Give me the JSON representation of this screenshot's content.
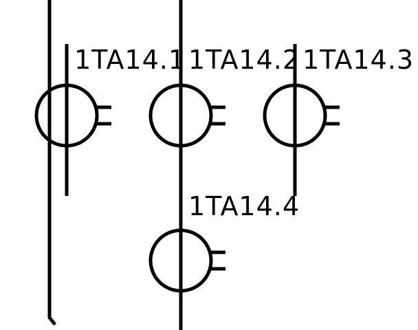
{
  "diagram": {
    "colors": {
      "stroke": "#000000",
      "background": "#ffffff"
    },
    "transformers": [
      {
        "id": "ct1",
        "label": "1TA14.1"
      },
      {
        "id": "ct2",
        "label": "1TA14.2"
      },
      {
        "id": "ct3",
        "label": "1TA14.3"
      },
      {
        "id": "ct4",
        "label": "1TA14.4"
      }
    ]
  }
}
